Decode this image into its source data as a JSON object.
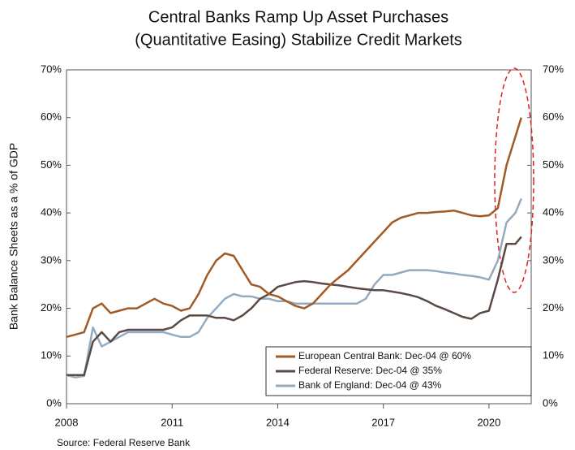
{
  "chart_data": {
    "type": "line",
    "title": [
      "Central Banks Ramp Up Asset Purchases",
      "(Quantitative Easing) Stabilize Credit Markets"
    ],
    "y_label": "Bank Balance Sheets as a % of GDP",
    "source": "Source: Federal Reserve Bank",
    "x": [
      2008,
      2008.25,
      2008.5,
      2008.75,
      2009,
      2009.25,
      2009.5,
      2009.75,
      2010,
      2010.25,
      2010.5,
      2010.75,
      2011,
      2011.25,
      2011.5,
      2011.75,
      2012,
      2012.25,
      2012.5,
      2012.75,
      2013,
      2013.25,
      2013.5,
      2013.75,
      2014,
      2014.25,
      2014.5,
      2014.75,
      2015,
      2015.25,
      2015.5,
      2015.75,
      2016,
      2016.25,
      2016.5,
      2016.75,
      2017,
      2017.25,
      2017.5,
      2017.75,
      2018,
      2018.25,
      2018.5,
      2018.75,
      2019,
      2019.25,
      2019.5,
      2019.75,
      2020,
      2020.25,
      2020.5,
      2020.75,
      2020.92
    ],
    "series": [
      {
        "name": "European Central Bank: Dec-04 @ 60%",
        "color": "#a25a24",
        "values": [
          14,
          14.5,
          15,
          20,
          21,
          19,
          19.5,
          20,
          20,
          21,
          22,
          21,
          20.5,
          19.5,
          20,
          23,
          27,
          30,
          31.5,
          31,
          28,
          25,
          24.5,
          23,
          22.5,
          21.5,
          20.5,
          20,
          21,
          23,
          25,
          26.5,
          28,
          30,
          32,
          34,
          36,
          38,
          39,
          39.5,
          40,
          40,
          40.2,
          40.3,
          40.5,
          40,
          39.5,
          39.3,
          39.5,
          41,
          50,
          56,
          60
        ]
      },
      {
        "name": "Federal Reserve: Dec-04 @ 35%",
        "color": "#5a4a44",
        "values": [
          6,
          6,
          6,
          13,
          15,
          13,
          15,
          15.5,
          15.5,
          15.5,
          15.5,
          15.5,
          16,
          17.5,
          18.5,
          18.5,
          18.5,
          18,
          18,
          17.5,
          18.5,
          20,
          22,
          23,
          24.5,
          25,
          25.5,
          25.7,
          25.5,
          25.2,
          25,
          24.8,
          24.5,
          24.2,
          24,
          23.8,
          23.8,
          23.5,
          23.2,
          22.8,
          22.3,
          21.5,
          20.5,
          19.8,
          19,
          18.2,
          17.8,
          19,
          19.5,
          26,
          33.5,
          33.5,
          35
        ]
      },
      {
        "name": "Bank of England: Dec-04 @ 43%",
        "color": "#93abc0",
        "values": [
          6,
          5.5,
          5.8,
          16,
          12,
          13,
          14,
          15,
          15,
          15,
          15,
          15,
          14.5,
          14,
          14,
          15,
          18,
          20,
          22,
          23,
          22.5,
          22.5,
          22,
          22,
          21.5,
          21.5,
          21,
          21,
          21,
          21,
          21,
          21,
          21,
          21,
          22,
          25,
          27,
          27,
          27.5,
          28,
          28,
          28,
          27.8,
          27.5,
          27.3,
          27,
          26.8,
          26.5,
          26,
          30,
          38,
          40,
          43
        ]
      }
    ],
    "xlim": [
      2008,
      2021.2
    ],
    "xticks": [
      2008,
      2011,
      2014,
      2017,
      2020
    ],
    "ylim": [
      0,
      70
    ],
    "yticks": [
      {
        "value": 0,
        "label": "0%"
      },
      {
        "value": 10,
        "label": "10%"
      },
      {
        "value": 20,
        "label": "20%"
      },
      {
        "value": 30,
        "label": "30%"
      },
      {
        "value": 40,
        "label": "40%"
      },
      {
        "value": 50,
        "label": "50%"
      },
      {
        "value": 60,
        "label": "60%"
      },
      {
        "value": 70,
        "label": "70%"
      }
    ],
    "y2lim": [
      0,
      70
    ],
    "y2ticks": [
      {
        "value": 0,
        "label": "0%"
      },
      {
        "value": 10,
        "label": "10%"
      },
      {
        "value": 20,
        "label": "20%"
      },
      {
        "value": 30,
        "label": "30%"
      },
      {
        "value": 40,
        "label": "40%"
      },
      {
        "value": 50,
        "label": "50%"
      },
      {
        "value": 60,
        "label": "60%"
      },
      {
        "value": 70,
        "label": "70%"
      }
    ],
    "legend": "lower right"
  }
}
